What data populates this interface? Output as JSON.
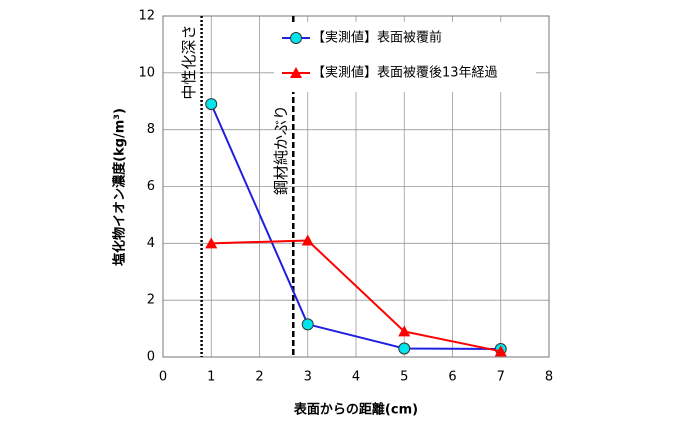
{
  "chart_data": {
    "type": "line",
    "x_label": "表面からの距離(cm)",
    "y_label": "塩化物イオン濃度(kg/m³)",
    "x": [
      1,
      3,
      5,
      7
    ],
    "series": [
      {
        "name": "【実測値】表面被覆前",
        "color": "#1f1fe0",
        "marker": "circle",
        "marker_color": "#00e5ee",
        "values": [
          8.9,
          1.15,
          0.3,
          0.28
        ]
      },
      {
        "name": "【実測値】表面被覆後13年経過",
        "color": "#ff0000",
        "marker": "triangle",
        "marker_color": "#ff0000",
        "values": [
          4.0,
          4.1,
          0.9,
          0.2
        ]
      }
    ],
    "reference_lines": [
      {
        "x": 0.8,
        "label": "中性化深さ",
        "style": "dotted"
      },
      {
        "x": 2.7,
        "label": "鋼材純かぶり",
        "style": "dashed"
      }
    ],
    "xlim": [
      0,
      8
    ],
    "xticks": [
      0,
      1,
      2,
      3,
      4,
      5,
      6,
      7,
      8
    ],
    "ylim": [
      0,
      12
    ],
    "yticks": [
      0,
      2,
      4,
      6,
      8,
      10,
      12
    ],
    "grid": true,
    "legend": "upper right"
  }
}
